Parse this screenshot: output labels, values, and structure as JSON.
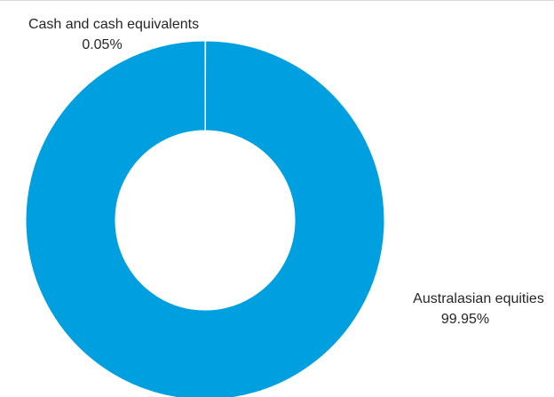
{
  "chart_data": {
    "type": "pie",
    "donut": true,
    "title": "",
    "legend": "none",
    "slices": [
      {
        "label": "Cash and cash equivalents",
        "value": 0.05,
        "value_label": "0.05%",
        "color": "#009fdf"
      },
      {
        "label": "Australasian equities",
        "value": 99.95,
        "value_label": "99.95%",
        "color": "#009fdf"
      }
    ]
  }
}
